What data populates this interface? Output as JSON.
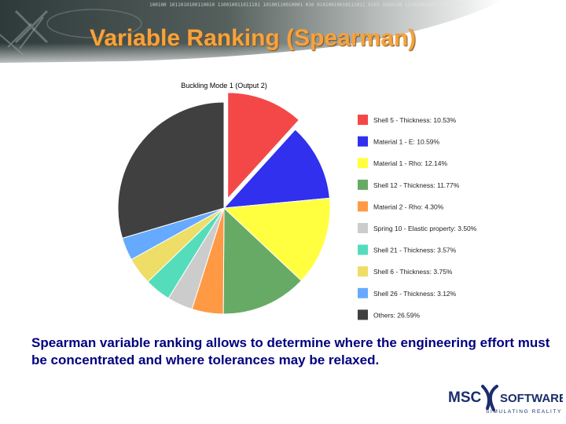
{
  "slide": {
    "title": "Variable Ranking (Spearman)",
    "caption": "Spearman variable ranking allows to determine where the engineering effort must be concentrated and where tolerances may be relaxed."
  },
  "logo": {
    "word_left": "MSC",
    "word_right": "SOFTWARE",
    "tagline": "SIMULATING REALITY",
    "color": "#1b2d6b"
  },
  "header_art": {
    "binary_text": "100100 1011010100110010 110010011011101 10100110010001 010 01010010010111011 0101 1010100 11101001001 010010110"
  },
  "chart_data": {
    "type": "pie",
    "title": "Buckling Mode 1 (Output 2)",
    "legend_position": "right",
    "categories": [
      "Shell 5 - Thickness: 10.53%",
      "Material 1 - E: 10.59%",
      "Material 1 - Rho: 12.14%",
      "Shell 12 - Thickness: 11.77%",
      "Material 2 - Rho: 4.30%",
      "Spring 10 - Elastic property: 3.50%",
      "Shell 21 - Thickness: 3.57%",
      "Shell 6 - Thickness: 3.75%",
      "Shell 26 - Thickness: 3.12%",
      "Others: 26.59%"
    ],
    "values": [
      10.53,
      10.59,
      12.14,
      11.77,
      4.3,
      3.5,
      3.57,
      3.75,
      3.12,
      26.59
    ],
    "colors": [
      "#f44848",
      "#3030ee",
      "#ffff40",
      "#66aa66",
      "#ff9944",
      "#cccccc",
      "#55ddbb",
      "#eedd66",
      "#66aaff",
      "#404040"
    ],
    "exploded": [
      true,
      false,
      false,
      false,
      false,
      false,
      false,
      false,
      false,
      false
    ]
  }
}
